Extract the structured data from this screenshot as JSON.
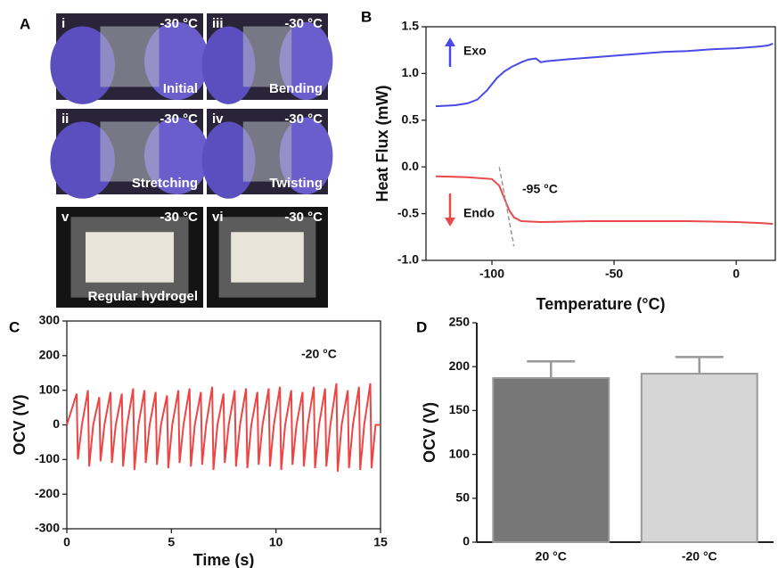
{
  "photo_panel": {
    "panel": "A",
    "photos": [
      {
        "numeral": "i",
        "temperature": "-30 °C",
        "caption": "Initial"
      },
      {
        "numeral": "iii",
        "temperature": "-30 °C",
        "caption": "Bending"
      },
      {
        "numeral": "ii",
        "temperature": "-30 °C",
        "caption": "Stretching"
      },
      {
        "numeral": "iv",
        "temperature": "-30 °C",
        "caption": "Twisting"
      },
      {
        "numeral": "v",
        "temperature": "-30 °C",
        "caption": "Regular hydrogel"
      },
      {
        "numeral": "vi",
        "temperature": "-30 °C"
      }
    ]
  },
  "chart_data": [
    {
      "type": "line",
      "panel": "B",
      "xlabel": "Temperature (°C)",
      "ylabel": "Heat Flux (mW)",
      "xlim": [
        -127,
        16
      ],
      "ylim": [
        -1.0,
        1.5
      ],
      "xticks": [
        -100,
        -50,
        {
          "value": 0,
          "label": "0"
        }
      ],
      "yticks": [
        1.5,
        {
          "value": 1,
          "label": "1.0"
        },
        0.5,
        {
          "value": 0,
          "label": "0.0"
        },
        -0.5,
        {
          "value": -1,
          "label": "-1.0"
        }
      ],
      "annotation": "-95 °C",
      "series": [
        {
          "name": "Exo",
          "color": "#4a4ae8",
          "x": [
            -123,
            -115,
            -110,
            -106,
            -102,
            -98,
            -95,
            -92,
            -88,
            -85,
            -82,
            -80,
            -78,
            -70,
            -60,
            -50,
            -40,
            -30,
            -20,
            -10,
            0,
            5,
            10,
            13,
            15
          ],
          "values": [
            0.65,
            0.66,
            0.68,
            0.72,
            0.82,
            0.95,
            1.02,
            1.07,
            1.12,
            1.15,
            1.16,
            1.12,
            1.13,
            1.15,
            1.17,
            1.19,
            1.21,
            1.23,
            1.24,
            1.26,
            1.27,
            1.28,
            1.29,
            1.3,
            1.32
          ]
        },
        {
          "name": "Endo",
          "color": "#e84a4a",
          "x": [
            -123,
            -110,
            -100,
            -97,
            -95,
            -93,
            -91,
            -88,
            -80,
            -60,
            -40,
            -20,
            0,
            10,
            15
          ],
          "values": [
            -0.1,
            -0.11,
            -0.13,
            -0.2,
            -0.33,
            -0.46,
            -0.54,
            -0.58,
            -0.59,
            -0.58,
            -0.58,
            -0.58,
            -0.59,
            -0.6,
            -0.61
          ]
        }
      ]
    },
    {
      "type": "line",
      "panel": "C",
      "xlabel": "Time (s)",
      "ylabel": "OCV (V)",
      "annotation": "-20 °C",
      "xlim": [
        0,
        15
      ],
      "ylim": [
        -300,
        300
      ],
      "xticks": [
        0,
        5,
        10,
        15
      ],
      "yticks": [
        300,
        200,
        100,
        0,
        -100,
        -200,
        -300
      ],
      "color": "#ee4444",
      "x": [
        0,
        0.47,
        0.53,
        0.72,
        1.01,
        1.07,
        1.26,
        1.55,
        1.61,
        1.8,
        2.09,
        2.15,
        2.34,
        2.63,
        2.69,
        2.88,
        3.17,
        3.23,
        3.42,
        3.71,
        3.77,
        3.96,
        4.25,
        4.31,
        4.5,
        4.79,
        4.85,
        5.04,
        5.33,
        5.39,
        5.58,
        5.87,
        5.93,
        6.12,
        6.41,
        6.47,
        6.66,
        6.95,
        7.01,
        7.2,
        7.49,
        7.55,
        7.74,
        8.03,
        8.09,
        8.28,
        8.57,
        8.63,
        8.82,
        9.11,
        9.17,
        9.36,
        9.65,
        9.71,
        9.9,
        10.19,
        10.25,
        10.44,
        10.73,
        10.79,
        10.98,
        11.27,
        11.33,
        11.52,
        11.81,
        11.87,
        12.06,
        12.35,
        12.41,
        12.6,
        12.89,
        12.95,
        13.14,
        13.43,
        13.49,
        13.68,
        13.97,
        14.03,
        14.22,
        14.51,
        14.57,
        14.76,
        15
      ],
      "values": [
        0,
        90,
        -100,
        0,
        100,
        -120,
        0,
        80,
        -105,
        0,
        95,
        -110,
        0,
        90,
        -120,
        0,
        105,
        -130,
        0,
        100,
        -110,
        0,
        95,
        -115,
        0,
        85,
        -125,
        0,
        100,
        -110,
        0,
        105,
        -120,
        0,
        95,
        -115,
        0,
        110,
        -130,
        0,
        90,
        -110,
        0,
        100,
        -120,
        0,
        105,
        -125,
        0,
        95,
        -115,
        0,
        105,
        -120,
        0,
        110,
        -130,
        0,
        100,
        -115,
        0,
        95,
        -120,
        0,
        110,
        -125,
        0,
        105,
        -120,
        0,
        120,
        -135,
        0,
        100,
        -125,
        0,
        110,
        -130,
        0,
        120,
        -125,
        0,
        0
      ]
    },
    {
      "type": "bar",
      "panel": "D",
      "ylabel": "OCV (V)",
      "categories": [
        "20 °C",
        "-20 °C"
      ],
      "values": [
        187,
        192
      ],
      "errors": [
        19,
        19
      ],
      "colors": [
        "#777777",
        "#d6d6d6"
      ],
      "ylim": [
        0,
        250
      ],
      "yticks": [
        250,
        200,
        150,
        100,
        50,
        0
      ]
    }
  ]
}
